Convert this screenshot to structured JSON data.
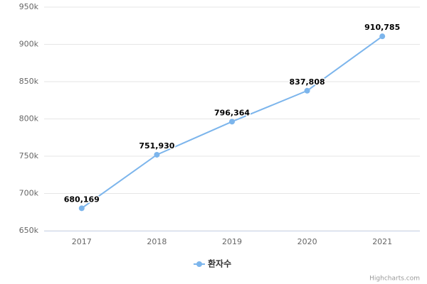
{
  "chart_data": {
    "type": "line",
    "categories": [
      "2017",
      "2018",
      "2019",
      "2020",
      "2021"
    ],
    "series": [
      {
        "name": "환자수",
        "color": "#7cb5ec",
        "values": [
          680169,
          751930,
          796364,
          837808,
          910785
        ],
        "value_labels": [
          "680,169",
          "751,930",
          "796,364",
          "837,808",
          "910,785"
        ]
      }
    ],
    "ylim": [
      650000,
      950000
    ],
    "yticks": [
      {
        "value": 650000,
        "label": "650k"
      },
      {
        "value": 700000,
        "label": "700k"
      },
      {
        "value": 750000,
        "label": "750k"
      },
      {
        "value": 800000,
        "label": "800k"
      },
      {
        "value": 850000,
        "label": "850k"
      },
      {
        "value": 900000,
        "label": "900k"
      },
      {
        "value": 950000,
        "label": "950k"
      }
    ],
    "grid": true,
    "legend": "bottom",
    "credits": "Highcharts.com"
  }
}
